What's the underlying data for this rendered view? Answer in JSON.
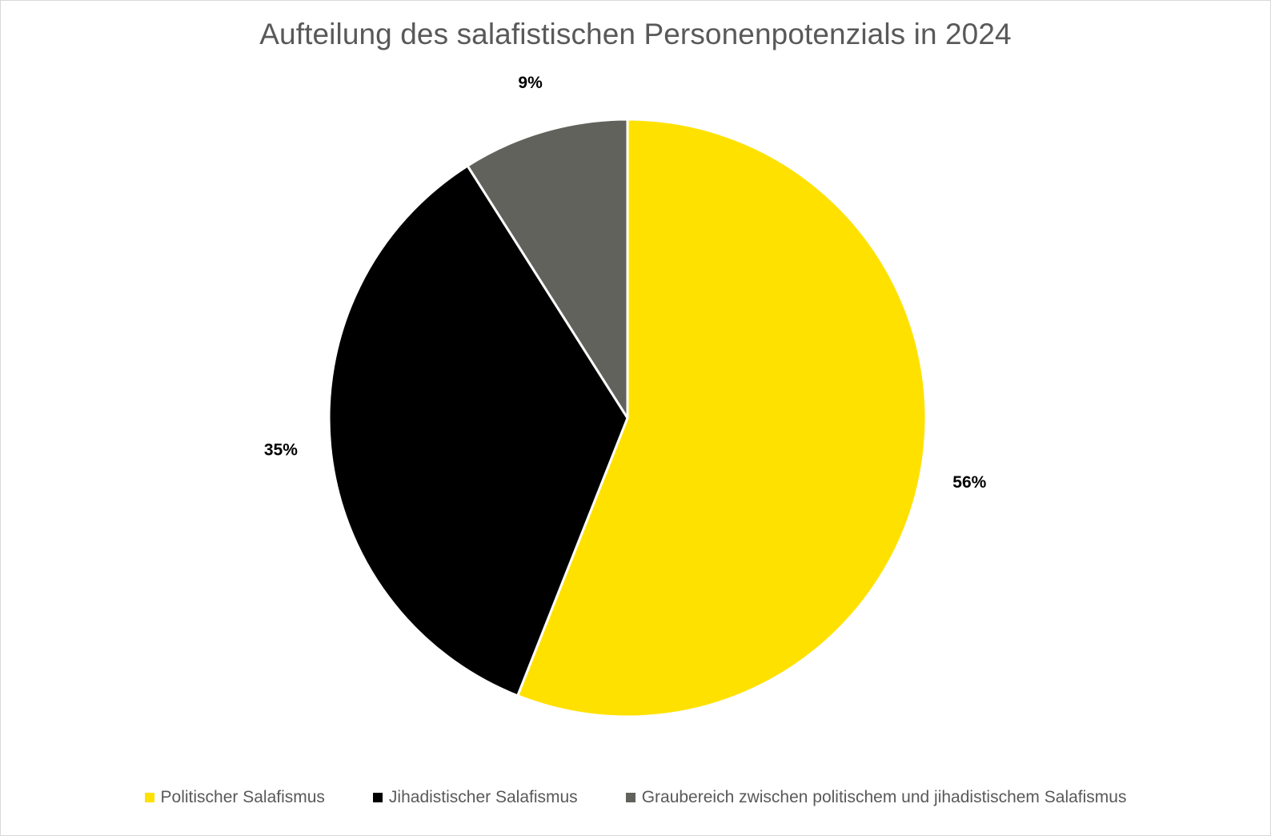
{
  "chart_data": {
    "type": "pie",
    "title": "Aufteilung des salafistischen Personenpotenzials in 2024",
    "slices": [
      {
        "name": "Politischer Salafismus",
        "value": 56,
        "label": "56%",
        "color": "#FFE100"
      },
      {
        "name": "Jihadistischer Salafismus",
        "value": 35,
        "label": "35%",
        "color": "#000000"
      },
      {
        "name": "Graubereich zwischen politischem und jihadistischem Salafismus",
        "value": 9,
        "label": "9%",
        "color": "#62625D"
      }
    ],
    "start_angle": "12 o'clock",
    "direction": "clockwise",
    "legend_position": "bottom"
  }
}
